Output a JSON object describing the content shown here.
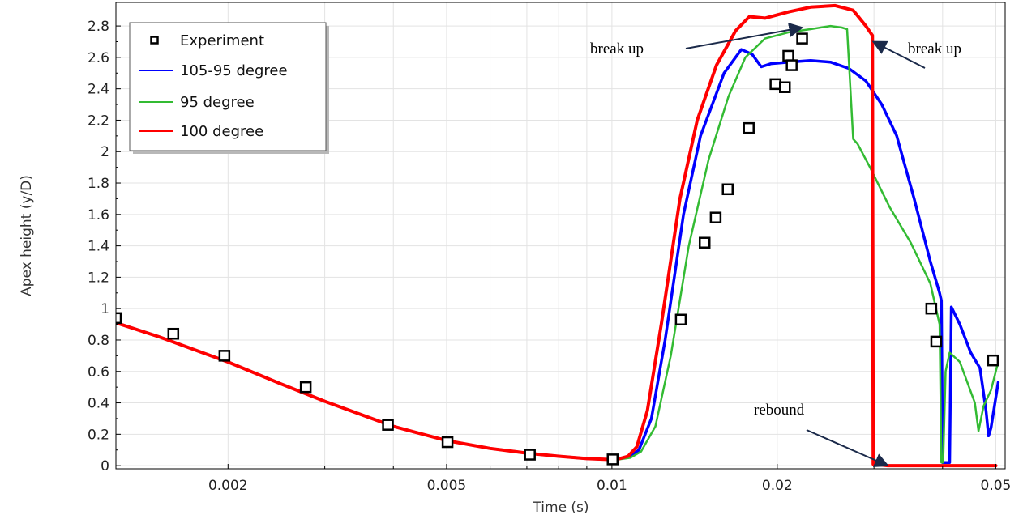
{
  "chart_data": {
    "type": "line",
    "xscale": "log",
    "xlabel": "Time (s)",
    "ylabel": "Apex height (y/D)",
    "xlim": [
      0.00125,
      0.052
    ],
    "ylim": [
      -0.02,
      2.95
    ],
    "xticks": [
      {
        "value": 0.002,
        "label": "0.002"
      },
      {
        "value": 0.005,
        "label": "0.005"
      },
      {
        "value": 0.01,
        "label": "0.01"
      },
      {
        "value": 0.02,
        "label": "0.02"
      },
      {
        "value": 0.05,
        "label": "0.05"
      }
    ],
    "yticks": [
      {
        "value": 0,
        "label": "0"
      },
      {
        "value": 0.2,
        "label": "0.2"
      },
      {
        "value": 0.4,
        "label": "0.4"
      },
      {
        "value": 0.6,
        "label": "0.6"
      },
      {
        "value": 0.8,
        "label": "0.8"
      },
      {
        "value": 1.0,
        "label": "1"
      },
      {
        "value": 1.2,
        "label": "1.2"
      },
      {
        "value": 1.4,
        "label": "1.4"
      },
      {
        "value": 1.6,
        "label": "1.6"
      },
      {
        "value": 1.8,
        "label": "1.8"
      },
      {
        "value": 2.0,
        "label": "2"
      },
      {
        "value": 2.2,
        "label": "2.2"
      },
      {
        "value": 2.4,
        "label": "2.4"
      },
      {
        "value": 2.6,
        "label": "2.6"
      },
      {
        "value": 2.8,
        "label": "2.8"
      }
    ],
    "grid": true,
    "legend_position": "top-left",
    "series": [
      {
        "name": "Experiment",
        "type": "scatter",
        "marker": "square",
        "color": "#000000",
        "points": [
          [
            0.00125,
            0.94
          ],
          [
            0.00159,
            0.84
          ],
          [
            0.00197,
            0.7
          ],
          [
            0.00277,
            0.5
          ],
          [
            0.00391,
            0.26
          ],
          [
            0.00502,
            0.15
          ],
          [
            0.00709,
            0.07
          ],
          [
            0.01003,
            0.04
          ],
          [
            0.01335,
            0.93
          ],
          [
            0.01475,
            1.42
          ],
          [
            0.01545,
            1.58
          ],
          [
            0.01625,
            1.76
          ],
          [
            0.01775,
            2.15
          ],
          [
            0.01985,
            2.43
          ],
          [
            0.02065,
            2.41
          ],
          [
            0.02095,
            2.61
          ],
          [
            0.02125,
            2.55
          ],
          [
            0.0222,
            2.72
          ],
          [
            0.03815,
            1.0
          ],
          [
            0.03895,
            0.79
          ],
          [
            0.0494,
            0.67
          ]
        ]
      },
      {
        "name": "105-95 degree",
        "type": "line",
        "color": "#0000ff",
        "points": [
          [
            0.00125,
            0.91
          ],
          [
            0.0015,
            0.82
          ],
          [
            0.002,
            0.66
          ],
          [
            0.0025,
            0.52
          ],
          [
            0.003,
            0.41
          ],
          [
            0.004,
            0.25
          ],
          [
            0.005,
            0.16
          ],
          [
            0.006,
            0.11
          ],
          [
            0.007,
            0.08
          ],
          [
            0.008,
            0.06
          ],
          [
            0.009,
            0.045
          ],
          [
            0.0098,
            0.04
          ],
          [
            0.0102,
            0.04
          ],
          [
            0.0108,
            0.06
          ],
          [
            0.0112,
            0.1
          ],
          [
            0.0118,
            0.3
          ],
          [
            0.0125,
            0.8
          ],
          [
            0.0135,
            1.6
          ],
          [
            0.0145,
            2.1
          ],
          [
            0.016,
            2.5
          ],
          [
            0.0172,
            2.65
          ],
          [
            0.018,
            2.62
          ],
          [
            0.0187,
            2.54
          ],
          [
            0.0195,
            2.56
          ],
          [
            0.021,
            2.57
          ],
          [
            0.023,
            2.58
          ],
          [
            0.025,
            2.57
          ],
          [
            0.027,
            2.53
          ],
          [
            0.029,
            2.45
          ],
          [
            0.031,
            2.3
          ],
          [
            0.033,
            2.1
          ],
          [
            0.0355,
            1.7
          ],
          [
            0.038,
            1.3
          ],
          [
            0.0395,
            1.1
          ],
          [
            0.0398,
            1.05
          ],
          [
            0.04,
            0.02
          ],
          [
            0.0412,
            0.02
          ],
          [
            0.0415,
            1.01
          ],
          [
            0.043,
            0.9
          ],
          [
            0.045,
            0.72
          ],
          [
            0.0468,
            0.62
          ],
          [
            0.048,
            0.35
          ],
          [
            0.0485,
            0.19
          ],
          [
            0.049,
            0.24
          ],
          [
            0.0505,
            0.53
          ]
        ]
      },
      {
        "name": "95 degree",
        "type": "line",
        "color": "#33bb33",
        "points": [
          [
            0.00125,
            0.91
          ],
          [
            0.0015,
            0.82
          ],
          [
            0.002,
            0.66
          ],
          [
            0.0025,
            0.52
          ],
          [
            0.003,
            0.41
          ],
          [
            0.004,
            0.25
          ],
          [
            0.005,
            0.16
          ],
          [
            0.006,
            0.11
          ],
          [
            0.007,
            0.08
          ],
          [
            0.008,
            0.06
          ],
          [
            0.009,
            0.045
          ],
          [
            0.0098,
            0.04
          ],
          [
            0.0103,
            0.04
          ],
          [
            0.0108,
            0.05
          ],
          [
            0.0113,
            0.09
          ],
          [
            0.012,
            0.25
          ],
          [
            0.0128,
            0.7
          ],
          [
            0.0138,
            1.4
          ],
          [
            0.015,
            1.95
          ],
          [
            0.0163,
            2.35
          ],
          [
            0.0175,
            2.6
          ],
          [
            0.019,
            2.72
          ],
          [
            0.021,
            2.76
          ],
          [
            0.023,
            2.78
          ],
          [
            0.025,
            2.8
          ],
          [
            0.0262,
            2.79
          ],
          [
            0.0268,
            2.78
          ],
          [
            0.0275,
            2.08
          ],
          [
            0.028,
            2.05
          ],
          [
            0.0295,
            1.9
          ],
          [
            0.032,
            1.65
          ],
          [
            0.035,
            1.42
          ],
          [
            0.038,
            1.16
          ],
          [
            0.0395,
            0.9
          ],
          [
            0.0398,
            0.02
          ],
          [
            0.0401,
            0.02
          ],
          [
            0.0405,
            0.6
          ],
          [
            0.0412,
            0.72
          ],
          [
            0.043,
            0.66
          ],
          [
            0.0458,
            0.4
          ],
          [
            0.0465,
            0.22
          ],
          [
            0.0475,
            0.38
          ],
          [
            0.049,
            0.48
          ],
          [
            0.0505,
            0.66
          ]
        ]
      },
      {
        "name": "100 degree",
        "type": "line",
        "color": "#ff0000",
        "points": [
          [
            0.00125,
            0.91
          ],
          [
            0.0015,
            0.82
          ],
          [
            0.002,
            0.66
          ],
          [
            0.0025,
            0.52
          ],
          [
            0.003,
            0.41
          ],
          [
            0.004,
            0.25
          ],
          [
            0.005,
            0.16
          ],
          [
            0.006,
            0.11
          ],
          [
            0.007,
            0.08
          ],
          [
            0.008,
            0.06
          ],
          [
            0.009,
            0.045
          ],
          [
            0.0098,
            0.04
          ],
          [
            0.0102,
            0.04
          ],
          [
            0.0107,
            0.06
          ],
          [
            0.0111,
            0.12
          ],
          [
            0.0116,
            0.35
          ],
          [
            0.0123,
            0.9
          ],
          [
            0.0133,
            1.7
          ],
          [
            0.0143,
            2.2
          ],
          [
            0.0155,
            2.55
          ],
          [
            0.0168,
            2.77
          ],
          [
            0.0178,
            2.86
          ],
          [
            0.019,
            2.85
          ],
          [
            0.021,
            2.89
          ],
          [
            0.023,
            2.92
          ],
          [
            0.0255,
            2.93
          ],
          [
            0.0275,
            2.9
          ],
          [
            0.029,
            2.8
          ],
          [
            0.0298,
            2.74
          ],
          [
            0.0299,
            0.01
          ],
          [
            0.0318,
            0.0
          ],
          [
            0.035,
            0.0
          ],
          [
            0.04,
            0.0
          ],
          [
            0.045,
            0.0
          ],
          [
            0.05,
            0.0
          ]
        ]
      }
    ],
    "annotations": [
      {
        "text": "break up",
        "target": [
          0.0222,
          2.79
        ]
      },
      {
        "text": "break up",
        "target": [
          0.0299,
          2.7
        ]
      },
      {
        "text": "rebound",
        "target": [
          0.0318,
          0.0
        ]
      }
    ]
  }
}
